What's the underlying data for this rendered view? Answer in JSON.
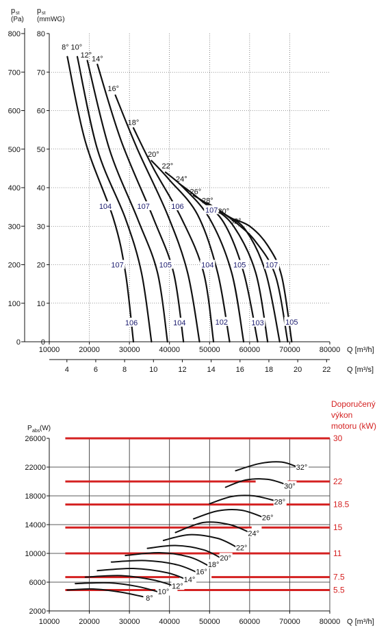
{
  "colors": {
    "curve": "#111111",
    "noise": "#1a1a6e",
    "motor": "#d42020",
    "grid": "#222222"
  },
  "chart_data": [
    {
      "type": "line",
      "ylabel_pa_main": "p",
      "ylabel_pa_sub": "st",
      "ylabel_pa_unit": "(Pa)",
      "ylabel_mm_main": "p",
      "ylabel_mm_sub": "st",
      "ylabel_mm_unit": "(mmWG)",
      "xlabel": "Q [m³/h]",
      "xlabel2": "Q [m³/s]",
      "xlim": [
        10000,
        80000
      ],
      "ylim": [
        0,
        800
      ],
      "x_ticks": [
        "10000",
        "20000",
        "30000",
        "40000",
        "50000",
        "60000",
        "70000",
        "80000"
      ],
      "x2_ticks": [
        "4",
        "6",
        "8",
        "10",
        "12",
        "14",
        "16",
        "18",
        "20",
        "22"
      ],
      "y_ticks_pa": [
        "0",
        "100",
        "200",
        "300",
        "400",
        "500",
        "600",
        "700",
        "800"
      ],
      "y_ticks_mm": [
        "0",
        "10",
        "20",
        "30",
        "40",
        "50",
        "60",
        "70",
        "80"
      ],
      "series": [
        {
          "name": "8°",
          "points": [
            [
              14500,
              740
            ],
            [
              19000,
              520
            ],
            [
              26000,
              320
            ],
            [
              29000,
              180
            ],
            [
              31000,
              0
            ]
          ]
        },
        {
          "name": "10°",
          "points": [
            [
              17000,
              740
            ],
            [
              22000,
              500
            ],
            [
              29000,
              320
            ],
            [
              33000,
              180
            ],
            [
              35500,
              0
            ]
          ]
        },
        {
          "name": "12°",
          "points": [
            [
              19500,
              730
            ],
            [
              25000,
              500
            ],
            [
              32000,
              320
            ],
            [
              37000,
              180
            ],
            [
              39500,
              0
            ]
          ]
        },
        {
          "name": "14°",
          "points": [
            [
              22000,
              720
            ],
            [
              28000,
              520
            ],
            [
              36000,
              320
            ],
            [
              41000,
              180
            ],
            [
              43500,
              0
            ]
          ]
        },
        {
          "name": "16°",
          "points": [
            [
              26500,
              640
            ],
            [
              32000,
              500
            ],
            [
              39500,
              330
            ],
            [
              44500,
              180
            ],
            [
              47500,
              0
            ]
          ]
        },
        {
          "name": "18°",
          "points": [
            [
              31000,
              555
            ],
            [
              36000,
              450
            ],
            [
              43000,
              320
            ],
            [
              48500,
              180
            ],
            [
              51000,
              0
            ]
          ]
        },
        {
          "name": "20°",
          "points": [
            [
              35500,
              470
            ],
            [
              40000,
              420
            ],
            [
              47000,
              330
            ],
            [
              52000,
              180
            ],
            [
              55000,
              0
            ]
          ]
        },
        {
          "name": "22°",
          "points": [
            [
              39000,
              440
            ],
            [
              43500,
              400
            ],
            [
              50000,
              320
            ],
            [
              55500,
              180
            ],
            [
              58500,
              0
            ]
          ]
        },
        {
          "name": "24°",
          "points": [
            [
              42500,
              410
            ],
            [
              47500,
              370
            ],
            [
              53500,
              310
            ],
            [
              58500,
              180
            ],
            [
              62000,
              0
            ]
          ]
        },
        {
          "name": "26°",
          "points": [
            [
              46000,
              380
            ],
            [
              50500,
              350
            ],
            [
              56000,
              300
            ],
            [
              61500,
              180
            ],
            [
              64500,
              0
            ]
          ]
        },
        {
          "name": "28°",
          "points": [
            [
              49500,
              360
            ],
            [
              54000,
              330
            ],
            [
              59000,
              290
            ],
            [
              64000,
              180
            ],
            [
              67500,
              0
            ]
          ]
        },
        {
          "name": "30°",
          "points": [
            [
              52500,
              340
            ],
            [
              56500,
              310
            ],
            [
              61500,
              260
            ],
            [
              66500,
              170
            ],
            [
              69500,
              0
            ]
          ]
        },
        {
          "name": "32°",
          "points": [
            [
              55500,
              320
            ],
            [
              60000,
              300
            ],
            [
              64500,
              250
            ],
            [
              68000,
              170
            ],
            [
              70500,
              0
            ]
          ]
        }
      ],
      "noise_labels": [
        {
          "text": "104",
          "x": 24000,
          "y": 352
        },
        {
          "text": "107",
          "x": 33500,
          "y": 352
        },
        {
          "text": "106",
          "x": 42000,
          "y": 352
        },
        {
          "text": "107",
          "x": 50500,
          "y": 342
        },
        {
          "text": "107",
          "x": 27000,
          "y": 200
        },
        {
          "text": "105",
          "x": 39000,
          "y": 200
        },
        {
          "text": "104",
          "x": 49500,
          "y": 200
        },
        {
          "text": "105",
          "x": 57500,
          "y": 200
        },
        {
          "text": "107",
          "x": 65500,
          "y": 200
        },
        {
          "text": "106",
          "x": 30500,
          "y": 50
        },
        {
          "text": "104",
          "x": 42500,
          "y": 50
        },
        {
          "text": "102",
          "x": 53000,
          "y": 52
        },
        {
          "text": "103",
          "x": 62000,
          "y": 50
        },
        {
          "text": "105",
          "x": 70500,
          "y": 52
        }
      ],
      "angle_labels": [
        {
          "text": "8°",
          "x": 14000,
          "y": 765
        },
        {
          "text": "10°",
          "x": 16800,
          "y": 765
        },
        {
          "text": "12°",
          "x": 19200,
          "y": 745
        },
        {
          "text": "14°",
          "x": 22000,
          "y": 735
        },
        {
          "text": "16°",
          "x": 26000,
          "y": 658
        },
        {
          "text": "18°",
          "x": 31000,
          "y": 570
        },
        {
          "text": "20°",
          "x": 36000,
          "y": 487
        },
        {
          "text": "22°",
          "x": 39500,
          "y": 457
        },
        {
          "text": "24°",
          "x": 43000,
          "y": 423
        },
        {
          "text": "26°",
          "x": 46500,
          "y": 390
        },
        {
          "text": "28°",
          "x": 49500,
          "y": 367
        },
        {
          "text": "30°",
          "x": 53500,
          "y": 340
        },
        {
          "text": "32°",
          "x": 56500,
          "y": 314
        }
      ]
    },
    {
      "type": "line",
      "ylabel_main": "P",
      "ylabel_sub": "abs",
      "ylabel_unit": "(W)",
      "xlabel": "Q [m³/h]",
      "xlim": [
        10000,
        80000
      ],
      "ylim": [
        2000,
        26000
      ],
      "x_ticks": [
        "10000",
        "20000",
        "30000",
        "40000",
        "50000",
        "60000",
        "70000",
        "80000"
      ],
      "y_ticks": [
        "2000",
        "6000",
        "10000",
        "14000",
        "18000",
        "22000",
        "26000"
      ],
      "motor_title": [
        "Doporučený",
        "výkon",
        "motoru (kW)"
      ],
      "motor_lines": [
        {
          "label": "30",
          "y": 26000,
          "gaps": []
        },
        {
          "label": "22",
          "y": 20000,
          "gaps": [
            [
              61500,
              69500
            ]
          ]
        },
        {
          "label": "18.5",
          "y": 16800,
          "gaps": []
        },
        {
          "label": "15",
          "y": 13600,
          "gaps": [
            [
              60500,
              63000
            ]
          ]
        },
        {
          "label": "11",
          "y": 10000,
          "gaps": []
        },
        {
          "label": "7.5",
          "y": 6700,
          "gaps": [
            [
              42500,
              50500
            ]
          ]
        },
        {
          "label": "5.5",
          "y": 4900,
          "gaps": [
            [
              36500,
              42000
            ]
          ]
        }
      ],
      "series": [
        {
          "name": "8°",
          "points": [
            [
              14500,
              4900
            ],
            [
              21000,
              5050
            ],
            [
              28000,
              4600
            ],
            [
              34000,
              3900
            ]
          ]
        },
        {
          "name": "10°",
          "points": [
            [
              16500,
              5800
            ],
            [
              25000,
              5900
            ],
            [
              32000,
              5400
            ],
            [
              37500,
              4600
            ]
          ]
        },
        {
          "name": "12°",
          "points": [
            [
              19000,
              6700
            ],
            [
              28000,
              6900
            ],
            [
              36000,
              6300
            ],
            [
              41500,
              5400
            ]
          ]
        },
        {
          "name": "14°",
          "points": [
            [
              22000,
              7600
            ],
            [
              31000,
              7900
            ],
            [
              39500,
              7300
            ],
            [
              44500,
              6300
            ]
          ]
        },
        {
          "name": "16°",
          "points": [
            [
              25500,
              8800
            ],
            [
              34000,
              9000
            ],
            [
              42000,
              8400
            ],
            [
              47500,
              7200
            ]
          ]
        },
        {
          "name": "18°",
          "points": [
            [
              29000,
              9700
            ],
            [
              37500,
              10100
            ],
            [
              45000,
              9500
            ],
            [
              50000,
              8200
            ]
          ]
        },
        {
          "name": "20°",
          "points": [
            [
              34500,
              10700
            ],
            [
              41500,
              11100
            ],
            [
              48500,
              10500
            ],
            [
              53000,
              9300
            ]
          ]
        },
        {
          "name": "22°",
          "points": [
            [
              38500,
              11800
            ],
            [
              45000,
              12600
            ],
            [
              52000,
              12100
            ],
            [
              57000,
              10800
            ]
          ]
        },
        {
          "name": "24°",
          "points": [
            [
              41500,
              12900
            ],
            [
              48500,
              14300
            ],
            [
              55000,
              14000
            ],
            [
              60000,
              12900
            ]
          ]
        },
        {
          "name": "26°",
          "points": [
            [
              46000,
              14800
            ],
            [
              52000,
              15900
            ],
            [
              58000,
              16000
            ],
            [
              63500,
              15000
            ]
          ]
        },
        {
          "name": "28°",
          "points": [
            [
              50000,
              16900
            ],
            [
              55500,
              17900
            ],
            [
              61000,
              18000
            ],
            [
              66500,
              17300
            ]
          ]
        },
        {
          "name": "30°",
          "points": [
            [
              54000,
              19200
            ],
            [
              59000,
              20200
            ],
            [
              64500,
              20300
            ],
            [
              69000,
              19600
            ]
          ]
        },
        {
          "name": "32°",
          "points": [
            [
              56500,
              21500
            ],
            [
              62500,
              22500
            ],
            [
              68000,
              22700
            ],
            [
              72000,
              22000
            ]
          ]
        }
      ],
      "angle_labels": [
        {
          "text": "8°",
          "x": 35000,
          "y": 3800
        },
        {
          "text": "10°",
          "x": 38500,
          "y": 4700
        },
        {
          "text": "12°",
          "x": 42000,
          "y": 5500
        },
        {
          "text": "14°",
          "x": 45000,
          "y": 6400
        },
        {
          "text": "16°",
          "x": 48000,
          "y": 7500
        },
        {
          "text": "18°",
          "x": 51000,
          "y": 8500
        },
        {
          "text": "20°",
          "x": 54000,
          "y": 9400
        },
        {
          "text": "22°",
          "x": 58000,
          "y": 10800
        },
        {
          "text": "24°",
          "x": 61000,
          "y": 12800
        },
        {
          "text": "26°",
          "x": 64500,
          "y": 15000
        },
        {
          "text": "28°",
          "x": 67500,
          "y": 17200
        },
        {
          "text": "30°",
          "x": 70000,
          "y": 19400
        },
        {
          "text": "32°",
          "x": 73000,
          "y": 22000
        }
      ]
    }
  ]
}
